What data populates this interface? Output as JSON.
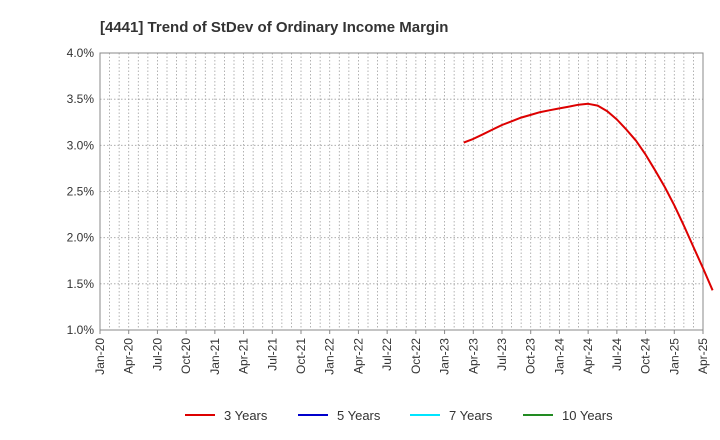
{
  "chart_data": {
    "type": "line",
    "title": "[4441]  Trend of StDev of Ordinary Income Margin",
    "xlabel": "",
    "ylabel": "",
    "y_ticks": [
      "1.0%",
      "1.5%",
      "2.0%",
      "2.5%",
      "3.0%",
      "3.5%",
      "4.0%"
    ],
    "ylim": [
      1.0,
      4.0
    ],
    "x_ticks": [
      "Jan-20",
      "Apr-20",
      "Jul-20",
      "Oct-20",
      "Jan-21",
      "Apr-21",
      "Jul-21",
      "Oct-21",
      "Jan-22",
      "Apr-22",
      "Jul-22",
      "Oct-22",
      "Jan-23",
      "Apr-23",
      "Jul-23",
      "Oct-23",
      "Jan-24",
      "Apr-24",
      "Jul-24",
      "Oct-24",
      "Jan-25",
      "Apr-25"
    ],
    "grid": true,
    "legend_position": "bottom",
    "series": [
      {
        "name": "3 Years",
        "color": "#dd0000",
        "points": [
          [
            "Mar-23",
            3.03
          ],
          [
            "Apr-23",
            3.07
          ],
          [
            "May-23",
            3.12
          ],
          [
            "Jun-23",
            3.17
          ],
          [
            "Jul-23",
            3.22
          ],
          [
            "Aug-23",
            3.26
          ],
          [
            "Sep-23",
            3.3
          ],
          [
            "Oct-23",
            3.33
          ],
          [
            "Nov-23",
            3.36
          ],
          [
            "Dec-23",
            3.38
          ],
          [
            "Jan-24",
            3.4
          ],
          [
            "Feb-24",
            3.42
          ],
          [
            "Mar-24",
            3.44
          ],
          [
            "Apr-24",
            3.45
          ],
          [
            "May-24",
            3.43
          ],
          [
            "Jun-24",
            3.37
          ],
          [
            "Jul-24",
            3.28
          ],
          [
            "Aug-24",
            3.17
          ],
          [
            "Sep-24",
            3.05
          ],
          [
            "Oct-24",
            2.9
          ],
          [
            "Nov-24",
            2.73
          ],
          [
            "Dec-24",
            2.55
          ],
          [
            "Jan-25",
            2.35
          ],
          [
            "Feb-25",
            2.13
          ],
          [
            "Mar-25",
            1.9
          ],
          [
            "Apr-25",
            1.67
          ],
          [
            "May-25",
            1.43
          ]
        ]
      },
      {
        "name": "5 Years",
        "color": "#0000cc",
        "points": []
      },
      {
        "name": "7 Years",
        "color": "#00e5ff",
        "points": []
      },
      {
        "name": "10 Years",
        "color": "#228b22",
        "points": []
      }
    ]
  }
}
